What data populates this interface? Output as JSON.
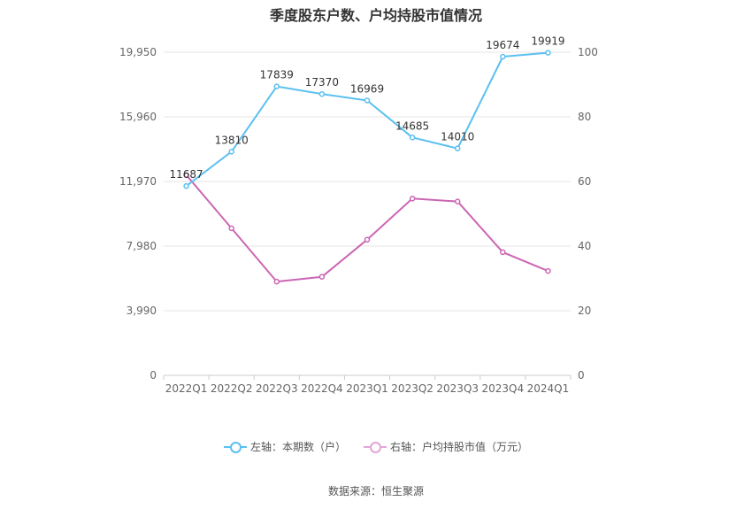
{
  "chart_data": {
    "type": "line",
    "title": "季度股东户数、户均持股市值情况",
    "categories": [
      "2022Q1",
      "2022Q2",
      "2022Q3",
      "2022Q4",
      "2023Q1",
      "2023Q2",
      "2023Q3",
      "2023Q4",
      "2024Q1"
    ],
    "left_axis": {
      "ticks": [
        "0",
        "3,990",
        "7,980",
        "11,970",
        "15,960",
        "19,950"
      ],
      "ylim": [
        0,
        19950
      ]
    },
    "right_axis": {
      "ticks": [
        "0",
        "20",
        "40",
        "60",
        "80",
        "100"
      ],
      "ylim": [
        0,
        100
      ]
    },
    "series": [
      {
        "name": "左轴：本期数（户）",
        "axis": "left",
        "color": "#5bc0f0",
        "values": [
          11687,
          13810,
          17839,
          17370,
          16969,
          14685,
          14010,
          19674,
          19919
        ],
        "show_labels": true
      },
      {
        "name": "右轴：户均持股市值（万元）",
        "axis": "right",
        "color": "#cc66b3",
        "values": [
          62.0,
          45.5,
          29.0,
          30.5,
          42.0,
          54.7,
          53.8,
          38.1,
          32.3
        ],
        "show_labels": false
      }
    ],
    "legend": [
      "左轴：本期数（户）",
      "右轴：户均持股市值（万元）"
    ],
    "legend_position": "bottom",
    "grid": true
  },
  "source_text": "数据来源：恒生聚源"
}
